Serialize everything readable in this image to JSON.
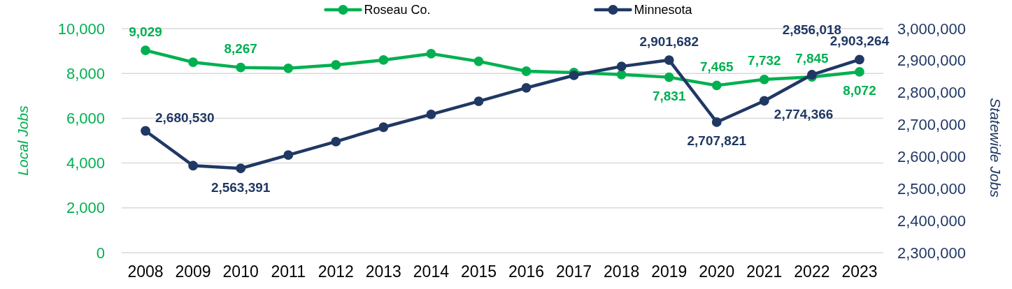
{
  "chart_data": {
    "type": "line",
    "ylabel": "Local Jobs",
    "y2label": "Statewide Jobs",
    "categories": [
      "2008",
      "2009",
      "2010",
      "2011",
      "2012",
      "2013",
      "2014",
      "2015",
      "2016",
      "2017",
      "2018",
      "2019",
      "2020",
      "2021",
      "2022",
      "2023"
    ],
    "series": [
      {
        "name": "Roseau Co.",
        "color": "#00b050",
        "values": [
          9029,
          8500,
          8267,
          8230,
          8380,
          8600,
          8880,
          8540,
          8100,
          8040,
          7950,
          7831,
          7465,
          7732,
          7845,
          8072
        ],
        "value_labels": [
          "9,029",
          null,
          "8,267",
          null,
          null,
          null,
          null,
          null,
          null,
          null,
          null,
          "7,831",
          "7,465",
          "7,732",
          "7,845",
          "8,072"
        ]
      },
      {
        "name": "Minnesota",
        "color": "#203864",
        "axis": "y2",
        "values": [
          2680530,
          2572000,
          2563391,
          2605000,
          2647000,
          2692000,
          2732000,
          2773000,
          2815000,
          2854000,
          2882000,
          2901682,
          2707821,
          2774366,
          2856018,
          2903264
        ],
        "value_labels": [
          "2,680,530",
          null,
          "2,563,391",
          null,
          null,
          null,
          null,
          null,
          null,
          null,
          null,
          "2,901,682",
          "2,707,821",
          "2,774,366",
          "2,856,018",
          "2,903,264"
        ]
      }
    ],
    "ylim": [
      0,
      10000
    ],
    "yticks": [
      0,
      {
        "value": 2000,
        "label": "2,000"
      },
      {
        "value": 4000,
        "label": "4,000"
      },
      {
        "value": 6000,
        "label": "6,000"
      },
      {
        "value": 8000,
        "label": "8,000"
      },
      {
        "value": 10000,
        "label": "10,000"
      }
    ],
    "y2lim": [
      2300000,
      3000000
    ],
    "y2ticks": [
      {
        "value": 2300000,
        "label": "2,300,000"
      },
      {
        "value": 2400000,
        "label": "2,400,000"
      },
      {
        "value": 2500000,
        "label": "2,500,000"
      },
      {
        "value": 2600000,
        "label": "2,600,000"
      },
      {
        "value": 2700000,
        "label": "2,700,000"
      },
      {
        "value": 2800000,
        "label": "2,800,000"
      },
      {
        "value": 2900000,
        "label": "2,900,000"
      },
      {
        "value": 3000000,
        "label": "3,000,000"
      }
    ],
    "grid": "y",
    "legend": "top",
    "marker": "circle",
    "line_style": "solid"
  }
}
